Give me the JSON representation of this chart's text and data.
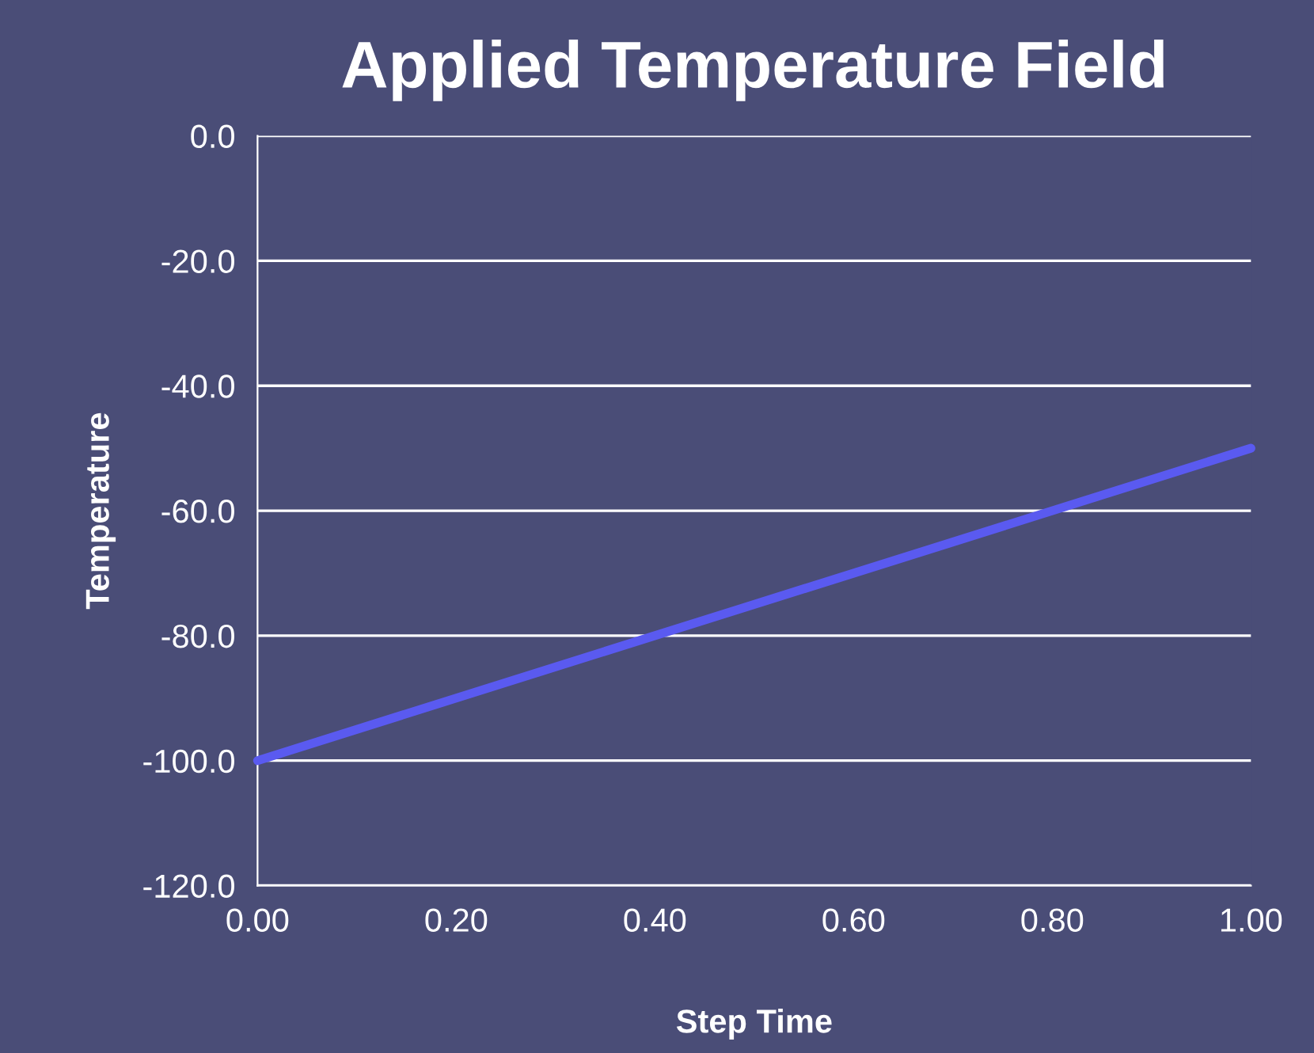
{
  "chart_data": {
    "type": "line",
    "title": "Applied Temperature Field",
    "xlabel": "Step Time",
    "ylabel": "Temperature",
    "x": [
      0.0,
      1.0
    ],
    "series": [
      {
        "color": "#5a5af0",
        "values": [
          -100.0,
          -50.0
        ]
      }
    ],
    "xlim": [
      0.0,
      1.0
    ],
    "xticks": [
      {
        "value": 0.0,
        "label": "0.00"
      },
      {
        "value": 0.2,
        "label": "0.20"
      },
      {
        "value": 0.4,
        "label": "0.40"
      },
      {
        "value": 0.6,
        "label": "0.60"
      },
      {
        "value": 0.8,
        "label": "0.80"
      },
      {
        "value": 1.0,
        "label": "1.00"
      }
    ],
    "ylim": [
      -120.0,
      0.0
    ],
    "yticks": [
      {
        "value": -120.0,
        "label": "-120.0"
      },
      {
        "value": -100.0,
        "label": "-100.0"
      },
      {
        "value": -80.0,
        "label": "-80.0"
      },
      {
        "value": -60.0,
        "label": "-60.0"
      },
      {
        "value": -40.0,
        "label": "-40.0"
      },
      {
        "value": -20.0,
        "label": "-20.0"
      },
      {
        "value": 0.0,
        "label": "0.0"
      }
    ],
    "grid": "y",
    "marker": "none",
    "line_style": "solid"
  }
}
